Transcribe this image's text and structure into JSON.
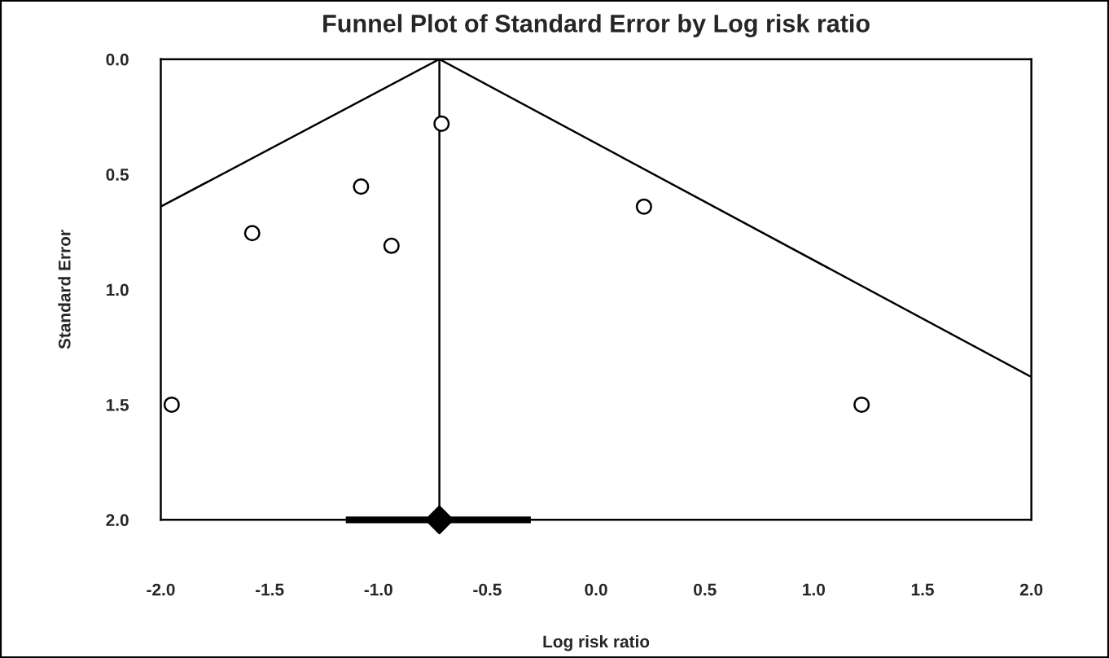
{
  "chart_data": {
    "type": "scatter",
    "title": "Funnel Plot of Standard Error by Log risk ratio",
    "xlabel": "Log risk ratio",
    "ylabel": "Standard Error",
    "series": [
      {
        "color": "#000000",
        "marker": "circle",
        "x": [
          -1.95,
          -1.58,
          -1.08,
          -0.94,
          -0.71,
          0.22,
          1.22
        ],
        "values": [
          1.5,
          0.755,
          0.553,
          0.81,
          0.28,
          0.64,
          1.5
        ]
      },
      {
        "type": "line",
        "color": "#000000",
        "marker": "none",
        "x": [
          -0.72,
          -2.0
        ],
        "values": [
          0.0,
          0.64
        ]
      },
      {
        "type": "line",
        "color": "#000000",
        "marker": "none",
        "x": [
          -0.72,
          2.0
        ],
        "values": [
          0.0,
          1.38
        ]
      },
      {
        "color": "#000000",
        "marker": "diamond",
        "x": [
          -0.72
        ],
        "values": [
          2.0
        ],
        "xerrors": [
          [
            -1.15,
            -0.3
          ]
        ]
      }
    ],
    "ref_lines": [
      {
        "axis": "x",
        "value": -0.72,
        "color": "#000000"
      }
    ],
    "xlim": [
      -2.0,
      2.0
    ],
    "ylim": [
      2.0,
      0.0
    ],
    "xticks": [
      {
        "value": -2.0,
        "label": "-2.0"
      },
      {
        "value": -1.5,
        "label": "-1.5"
      },
      {
        "value": -1.0,
        "label": "-1.0"
      },
      {
        "value": -0.5,
        "label": "-0.5"
      },
      {
        "value": 0.0,
        "label": "0.0"
      },
      {
        "value": 0.5,
        "label": "0.5"
      },
      {
        "value": 1.0,
        "label": "1.0"
      },
      {
        "value": 1.5,
        "label": "1.5"
      },
      {
        "value": 2.0,
        "label": "2.0"
      }
    ],
    "yticks": [
      {
        "value": 0.0,
        "label": "0.0"
      },
      {
        "value": 0.5,
        "label": "0.5"
      },
      {
        "value": 1.0,
        "label": "1.0"
      },
      {
        "value": 1.5,
        "label": "1.5"
      },
      {
        "value": 2.0,
        "label": "2.0"
      }
    ],
    "grid": false,
    "legend": false
  }
}
